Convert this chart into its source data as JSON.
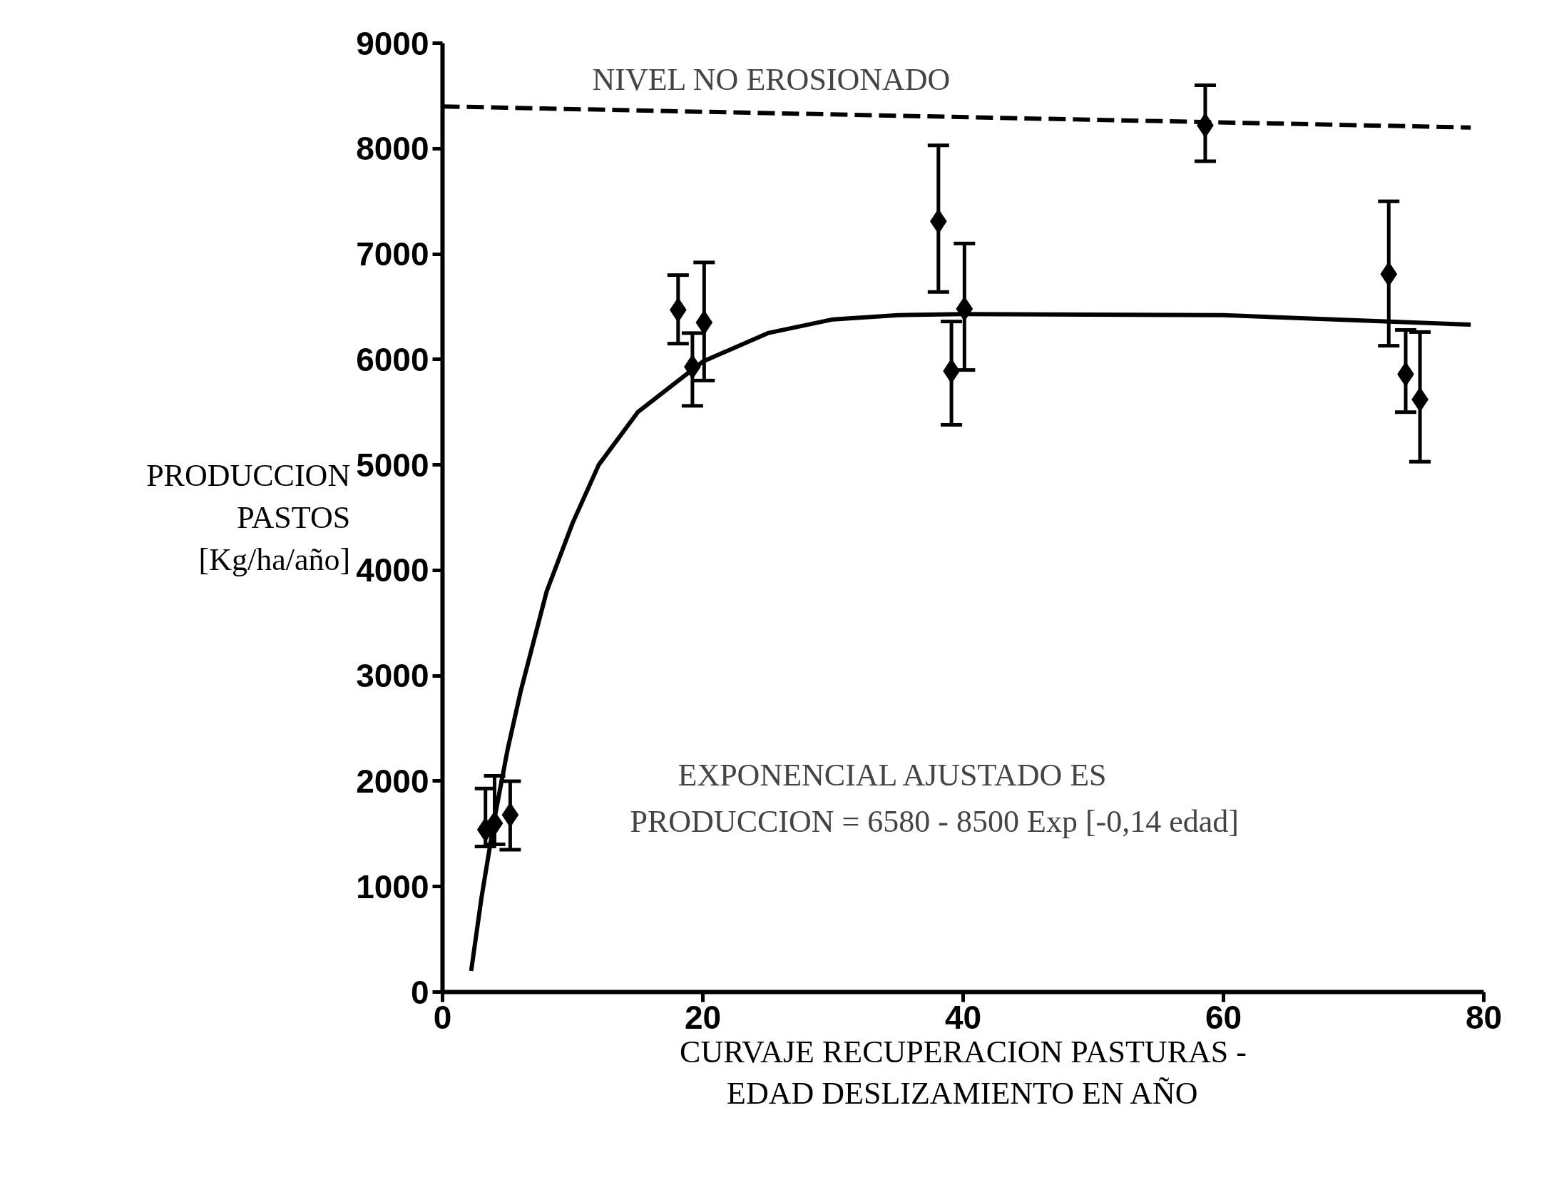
{
  "chart_data": {
    "type": "scatter",
    "xlabel": "CURVAJE RECUPERACION PASTURAS -\nEDAD DESLIZAMIENTO EN AÑO",
    "ylabel": "PRODUCCION\nPASTOS\n[Kg/ha/año]",
    "xlim": [
      0,
      80
    ],
    "ylim": [
      0,
      9000
    ],
    "xticks": [
      0,
      20,
      40,
      60,
      80
    ],
    "yticks": [
      0,
      1000,
      2000,
      3000,
      4000,
      5000,
      6000,
      7000,
      8000,
      9000
    ],
    "grid": false,
    "marker": "diamond",
    "series": [
      {
        "color": "#000000",
        "x": [
          3.3,
          4.0,
          5.2,
          18.1,
          19.2,
          20.1,
          38.1,
          39.1,
          40.1,
          58.6,
          72.7,
          74.0,
          75.1
        ],
        "values": [
          1540,
          1600,
          1680,
          6470,
          5930,
          6350,
          7310,
          5890,
          6480,
          8220,
          6810,
          5860,
          5620
        ],
        "errors": [
          [
            1380,
            1930
          ],
          [
            1400,
            2050
          ],
          [
            1350,
            2000
          ],
          [
            6150,
            6800
          ],
          [
            5560,
            6250
          ],
          [
            5800,
            6920
          ],
          [
            6640,
            8030
          ],
          [
            5380,
            6360
          ],
          [
            5900,
            7100
          ],
          [
            7880,
            8600
          ],
          [
            6130,
            7500
          ],
          [
            5500,
            6280
          ],
          [
            5030,
            6260
          ]
        ]
      },
      {
        "type": "line",
        "color": "#000000",
        "line_style": "solid",
        "marker": "none",
        "x": [
          2.2,
          3,
          4,
          5,
          6,
          8,
          10,
          12,
          15,
          20,
          25,
          30,
          35,
          40,
          60,
          79
        ],
        "values": [
          200,
          900,
          1650,
          2300,
          2850,
          3800,
          4450,
          5000,
          5500,
          5980,
          6250,
          6380,
          6420,
          6430,
          6420,
          6330
        ]
      },
      {
        "type": "line",
        "color": "#000000",
        "line_style": "dashed",
        "marker": "none",
        "x": [
          0,
          79
        ],
        "values": [
          8400,
          8200
        ]
      }
    ],
    "annotations": [
      "NIVEL NO EROSIONADO",
      "EXPONENCIAL AJUSTADO ES",
      "PRODUCCION = 6580 - 8500 Exp [-0,14 edad]"
    ]
  }
}
